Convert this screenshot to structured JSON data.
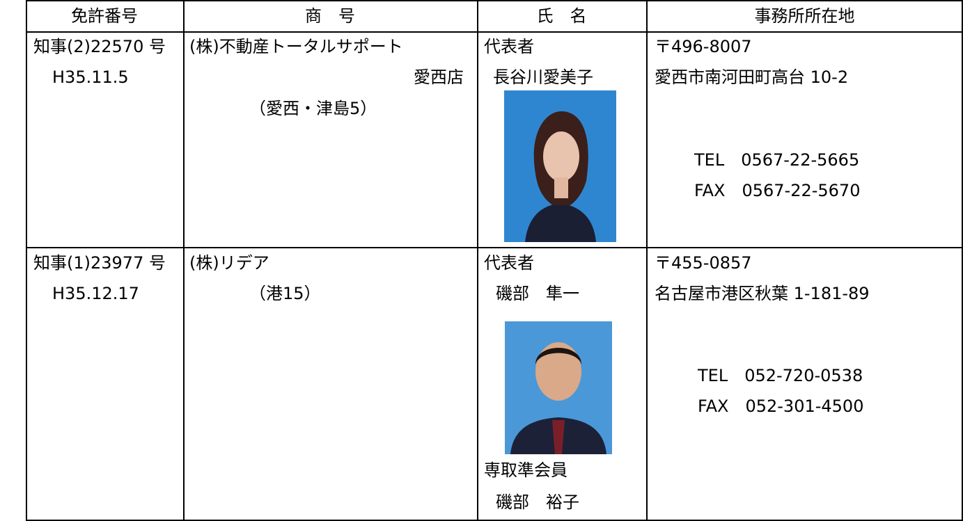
{
  "table": {
    "header": [
      "免許番号",
      "商　号",
      "氏　名",
      "事務所所在地"
    ],
    "rows": [
      {
        "license": [
          "知事(2)22570 号",
          "H35.11.5"
        ],
        "company": [
          "(株)不動産トータルサポート",
          "愛西店",
          "（愛西・津島5）"
        ],
        "name": [
          "代表者",
          "長谷川愛美子"
        ],
        "office": [
          "〒496-8007",
          "愛西市南河田町高台 10-2",
          "TEL　0567-22-5665",
          "FAX　0567-22-5670"
        ]
      },
      {
        "license": [
          "知事(1)23977 号",
          "H35.12.17"
        ],
        "company": [
          "(株)リデア",
          "（港15）"
        ],
        "name": [
          "代表者",
          "磯部　隼一",
          "専取準会員",
          "磯部　裕子"
        ],
        "office": [
          "〒455-0857",
          "名古屋市港区秋葉 1-181-89",
          "TEL　052-720-0538",
          "FAX　052-301-4500"
        ]
      }
    ]
  }
}
